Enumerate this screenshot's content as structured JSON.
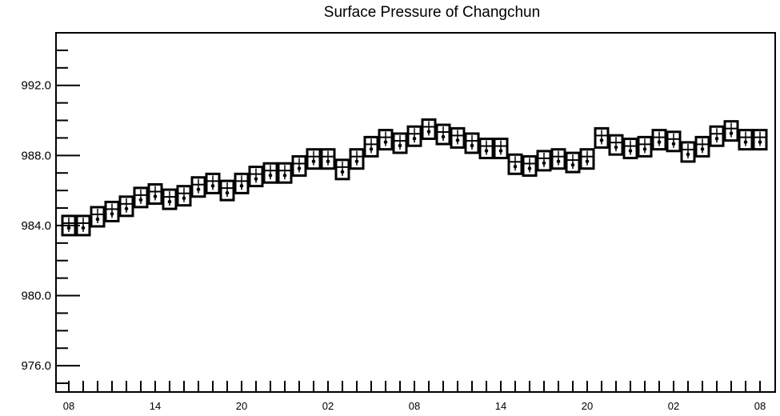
{
  "chart_data": {
    "type": "box",
    "title": "Surface Pressure of Changchun",
    "xlabel": "",
    "ylabel": "",
    "ylim": [
      974.5,
      995.0
    ],
    "y_ticks": [
      976.0,
      980.0,
      984.0,
      988.0,
      992.0
    ],
    "y_tick_labels": [
      "976.0",
      "980.0",
      "984.0",
      "988.0",
      "992.0"
    ],
    "y_minor_step": 1.0,
    "x_tick_labels": [
      "08",
      "14",
      "20",
      "02",
      "08",
      "14",
      "20",
      "02",
      "08"
    ],
    "x_tick_label_every": 6,
    "x_minor_ticks_per_step": 1,
    "grid": false,
    "series": [
      {
        "values": [
          984.0,
          984.0,
          984.5,
          984.8,
          985.1,
          985.6,
          985.8,
          985.5,
          985.7,
          986.2,
          986.4,
          986.0,
          986.4,
          986.8,
          987.0,
          987.0,
          987.4,
          987.8,
          987.8,
          987.2,
          987.8,
          988.5,
          988.9,
          988.7,
          989.1,
          989.5,
          989.2,
          989.0,
          988.7,
          988.4,
          988.4,
          987.5,
          987.4,
          987.7,
          987.8,
          987.6,
          987.8,
          989.0,
          988.6,
          988.4,
          988.5,
          988.9,
          988.8,
          988.2,
          988.5,
          989.1,
          989.4,
          988.9,
          988.9
        ]
      }
    ]
  }
}
